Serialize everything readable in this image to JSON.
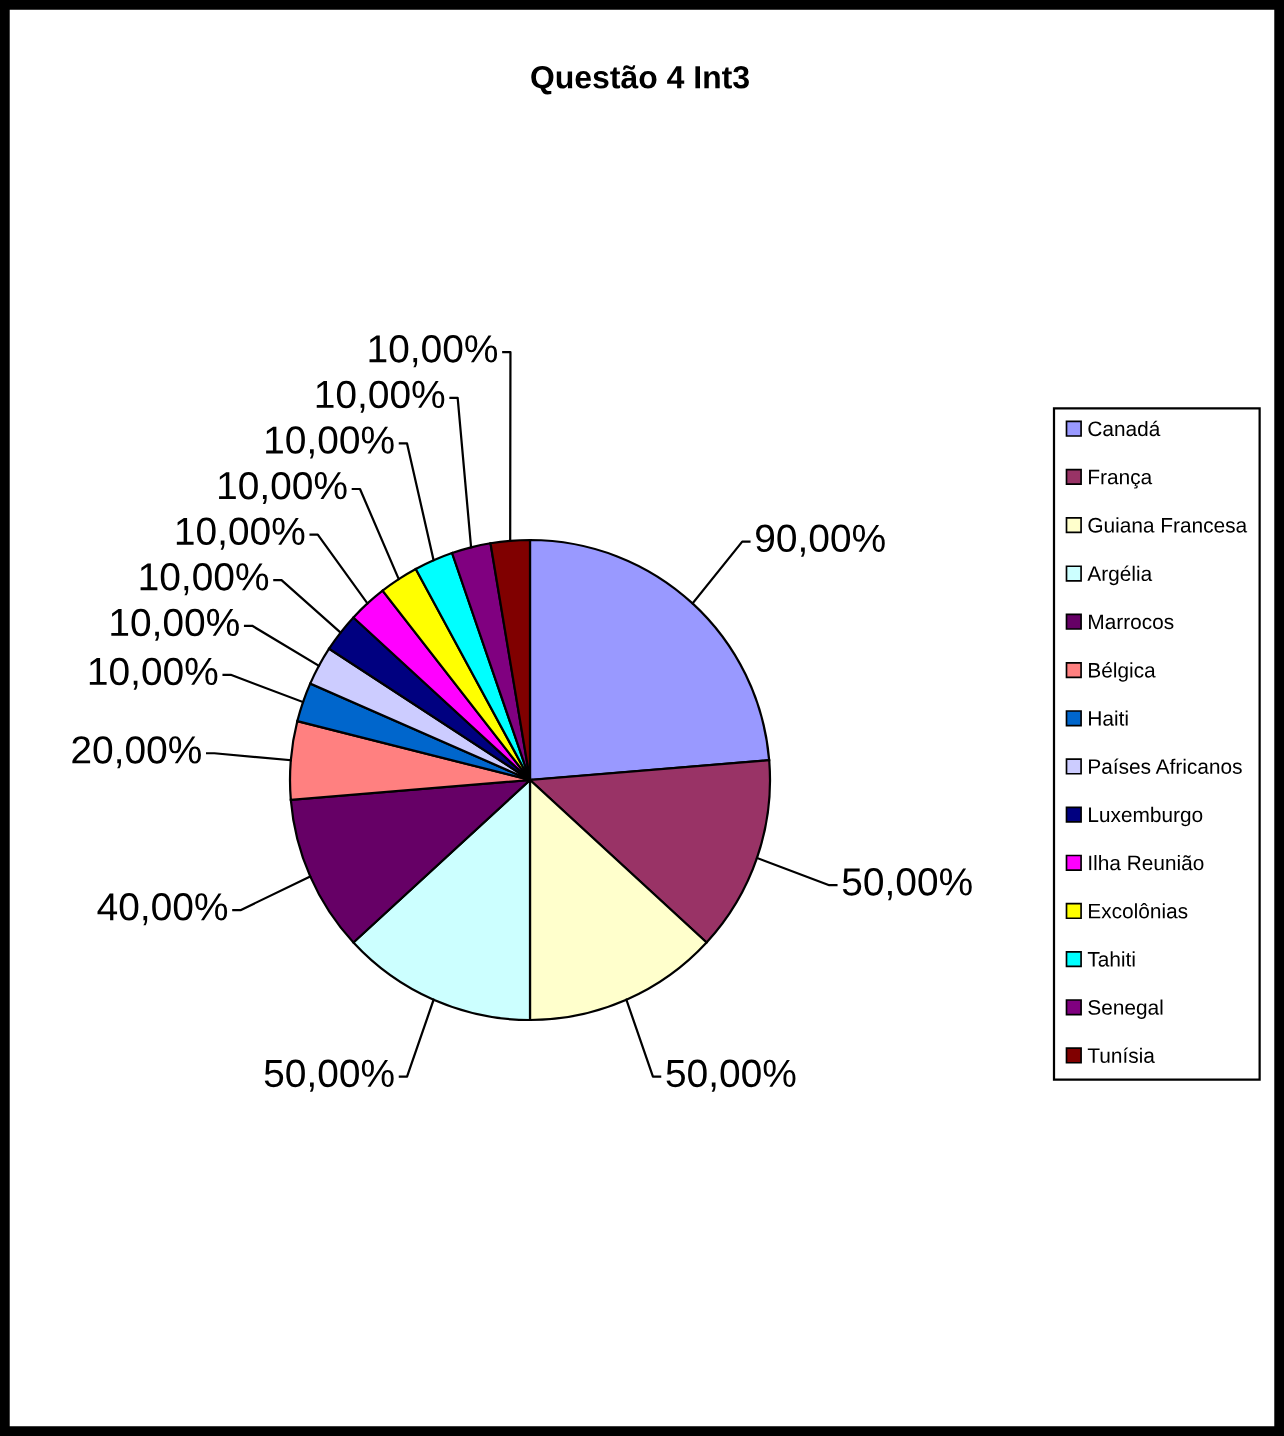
{
  "chart_data": {
    "type": "pie",
    "title": "Questão 4 Int3",
    "categories": [
      "Canadá",
      "França",
      "Guiana Francesa",
      "Argélia",
      "Marrocos",
      "Bélgica",
      "Haiti",
      "Países Africanos",
      "Luxemburgo",
      "Ilha Reunião",
      "Excolônias",
      "Tahiti",
      "Senegal",
      "Tunísia"
    ],
    "values": [
      90,
      50,
      50,
      50,
      40,
      20,
      10,
      10,
      10,
      10,
      10,
      10,
      10,
      10
    ],
    "value_labels": [
      "90,00%",
      "50,00%",
      "50,00%",
      "50,00%",
      "40,00%",
      "20,00%",
      "10,00%",
      "10,00%",
      "10,00%",
      "10,00%",
      "10,00%",
      "10,00%",
      "10,00%",
      "10,00%"
    ],
    "colors": [
      "#9999ff",
      "#993366",
      "#ffffcc",
      "#ccffff",
      "#660066",
      "#ff8080",
      "#0066cc",
      "#ccccff",
      "#000080",
      "#ff00ff",
      "#ffff00",
      "#00ffff",
      "#800080",
      "#800000"
    ],
    "legend": "right"
  }
}
